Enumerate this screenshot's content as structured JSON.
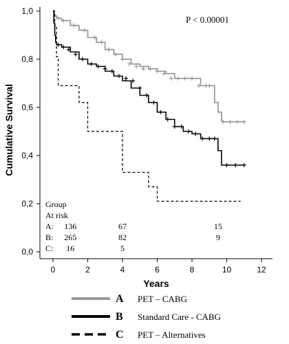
{
  "chart_data": {
    "type": "line",
    "subtype": "kaplan-meier",
    "xlabel": "Years",
    "ylabel": "Cumulative Survival",
    "xlim": [
      -0.5,
      12
    ],
    "ylim": [
      -0.05,
      1.0
    ],
    "x_ticks": [
      0,
      2,
      4,
      6,
      8,
      10,
      12
    ],
    "x_tick_labels": [
      "0",
      "2",
      "4",
      "6",
      "8",
      "10",
      "12"
    ],
    "y_ticks": [
      0.0,
      0.2,
      0.4,
      0.6,
      0.8,
      1.0
    ],
    "y_tick_labels": [
      "0,0",
      "0,2",
      "0,4",
      "0,6",
      "0,8",
      "1,0"
    ],
    "grid": false,
    "legend_position": "bottom",
    "annotation": "P < 0.00001",
    "series": [
      {
        "name": "A",
        "legend_key": "A",
        "legend_label": "PET – CABG",
        "color": "#9a9a9a",
        "dash": "solid",
        "x": [
          0,
          0.05,
          0.1,
          0.2,
          0.5,
          1.0,
          1.5,
          2.0,
          2.5,
          3.0,
          3.5,
          4.0,
          4.5,
          5.0,
          5.5,
          6.0,
          6.5,
          7.0,
          7.5,
          8.0,
          8.5,
          9.0,
          9.3,
          9.5,
          9.7,
          10.0,
          10.5,
          11.0
        ],
        "y": [
          1.0,
          0.99,
          0.98,
          0.97,
          0.96,
          0.94,
          0.92,
          0.89,
          0.87,
          0.84,
          0.82,
          0.8,
          0.78,
          0.77,
          0.76,
          0.75,
          0.74,
          0.72,
          0.72,
          0.72,
          0.69,
          0.69,
          0.62,
          0.58,
          0.54,
          0.54,
          0.54,
          0.54
        ],
        "censor_x": [
          0.3,
          0.6,
          1.2,
          1.8,
          2.4,
          2.8,
          3.2,
          3.6,
          4.0,
          4.4,
          4.8,
          5.2,
          5.6,
          6.0,
          6.4,
          6.8,
          7.2,
          7.6,
          8.0,
          8.4,
          8.8,
          9.0,
          9.8,
          10.2,
          10.6,
          11.0
        ],
        "censor_y": [
          0.97,
          0.96,
          0.94,
          0.92,
          0.89,
          0.87,
          0.84,
          0.82,
          0.8,
          0.78,
          0.77,
          0.76,
          0.76,
          0.75,
          0.74,
          0.72,
          0.72,
          0.72,
          0.72,
          0.69,
          0.69,
          0.69,
          0.54,
          0.54,
          0.54,
          0.54
        ]
      },
      {
        "name": "B",
        "legend_key": "B",
        "legend_label": "Standard Care - CABG",
        "color": "#000000",
        "dash": "solid",
        "x": [
          0,
          0.05,
          0.1,
          0.15,
          0.2,
          0.5,
          1.0,
          1.5,
          2.0,
          2.5,
          3.0,
          3.5,
          4.0,
          4.5,
          5.0,
          5.5,
          6.0,
          6.5,
          7.0,
          7.5,
          8.0,
          8.5,
          9.0,
          9.5,
          9.7,
          10.0,
          11.0
        ],
        "y": [
          1.0,
          0.95,
          0.9,
          0.87,
          0.86,
          0.85,
          0.83,
          0.8,
          0.78,
          0.77,
          0.75,
          0.73,
          0.71,
          0.68,
          0.65,
          0.62,
          0.58,
          0.55,
          0.52,
          0.5,
          0.49,
          0.47,
          0.47,
          0.42,
          0.36,
          0.36,
          0.36
        ],
        "censor_x": [
          0.3,
          0.6,
          0.9,
          1.3,
          1.7,
          2.2,
          2.6,
          3.0,
          3.4,
          3.8,
          4.2,
          4.6,
          5.0,
          5.4,
          5.8,
          6.2,
          6.6,
          7.0,
          7.4,
          7.8,
          8.2,
          8.6,
          9.0,
          9.3,
          10.0,
          10.5,
          11.0
        ],
        "censor_y": [
          0.86,
          0.85,
          0.84,
          0.82,
          0.8,
          0.78,
          0.77,
          0.76,
          0.75,
          0.73,
          0.72,
          0.71,
          0.68,
          0.65,
          0.62,
          0.58,
          0.55,
          0.52,
          0.52,
          0.5,
          0.49,
          0.47,
          0.47,
          0.47,
          0.36,
          0.36,
          0.36
        ]
      },
      {
        "name": "C",
        "legend_key": "C",
        "legend_label": "PET – Alternatives",
        "color": "#000000",
        "dash": "dashed",
        "x": [
          0,
          0.1,
          0.2,
          0.3,
          1.0,
          1.5,
          2.0,
          3.5,
          4.0,
          5.0,
          5.5,
          6.0,
          8.0,
          10.0,
          10.8
        ],
        "y": [
          1.0,
          0.94,
          0.81,
          0.69,
          0.69,
          0.62,
          0.5,
          0.5,
          0.33,
          0.33,
          0.27,
          0.21,
          0.21,
          0.21,
          0.21
        ]
      }
    ],
    "at_risk": {
      "group_label": "Group",
      "row_label": "At risk",
      "rows": [
        {
          "label": "A:",
          "values": [
            136,
            67,
            15
          ]
        },
        {
          "label": "B:",
          "values": [
            265,
            82,
            9
          ]
        },
        {
          "label": "C:",
          "values": [
            16,
            5,
            null
          ]
        }
      ],
      "x": [
        1,
        4,
        9.5
      ]
    }
  }
}
